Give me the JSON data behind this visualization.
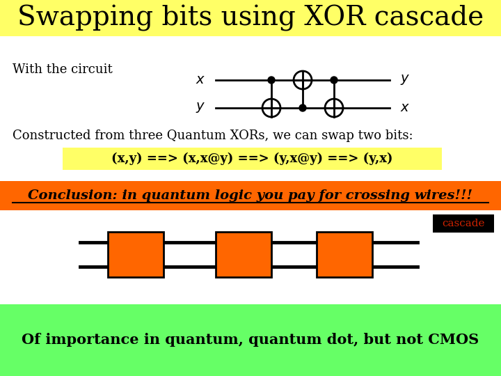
{
  "title": "Swapping bits using XOR cascade",
  "title_bg": "#ffff66",
  "title_fontsize": 28,
  "with_circuit_text": "With the circuit",
  "constructed_text": "Constructed from three Quantum XORs, we can swap two bits:",
  "xor_formula": "(x,y) ==> (x,x@y) ==> (y,x@y) ==> (y,x)",
  "xor_formula_bg": "#ffff66",
  "conclusion_text": "Conclusion: in quantum logic you pay for crossing wires!!!",
  "conclusion_bg": "#ff6600",
  "conclusion_text_color": "#000000",
  "bottom_text": "Of importance in quantum, quantum dot, but not CMOS",
  "bottom_bg": "#66ff66",
  "cascade_label": "cascade",
  "cascade_bg": "#000000",
  "cascade_text_color": "#cc2200",
  "gate_color": "#ff6600",
  "gate_edge": "#000000",
  "wire_color": "#000000",
  "background": "#ffffff"
}
